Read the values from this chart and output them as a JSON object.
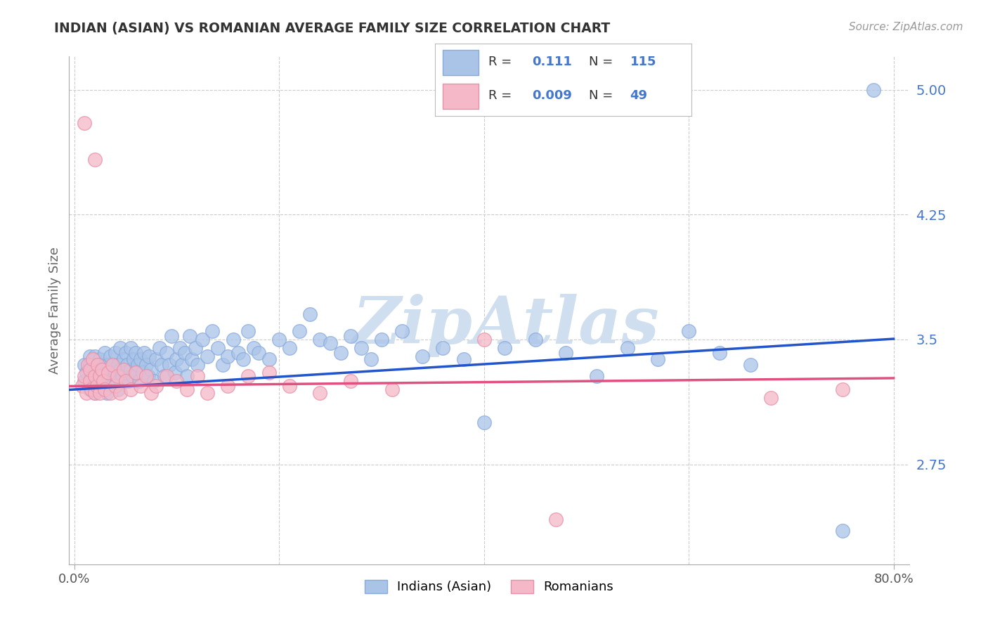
{
  "title": "INDIAN (ASIAN) VS ROMANIAN AVERAGE FAMILY SIZE CORRELATION CHART",
  "source": "Source: ZipAtlas.com",
  "ylabel": "Average Family Size",
  "xlim": [
    -0.005,
    0.815
  ],
  "ylim": [
    2.15,
    5.2
  ],
  "yticks": [
    2.75,
    3.5,
    4.25,
    5.0
  ],
  "background_color": "#ffffff",
  "grid_color": "#cccccc",
  "title_color": "#333333",
  "axis_label_color": "#666666",
  "right_tick_color": "#4477cc",
  "indian_color": "#aac4e8",
  "indian_edge_color": "#88aadd",
  "romanian_color": "#f5b8c8",
  "romanian_edge_color": "#e890a8",
  "indian_line_color": "#2255cc",
  "romanian_line_color": "#e05080",
  "watermark_text": "ZipAtlas",
  "watermark_color": "#d0dff0",
  "legend_R_indian": "0.111",
  "legend_N_indian": "115",
  "legend_R_romanian": "0.009",
  "legend_N_romanian": "49",
  "legend_text_color": "#4477cc",
  "legend_label_color": "#333333",
  "indian_slope": 0.38,
  "indian_intercept": 3.2,
  "romanian_slope": 0.06,
  "romanian_intercept": 3.22
}
